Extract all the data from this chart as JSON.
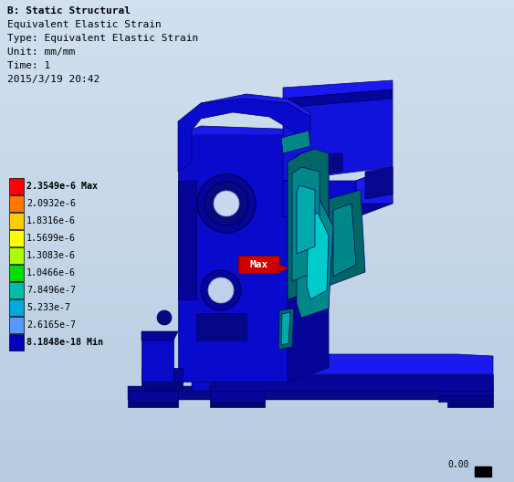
{
  "title_line1": "B: Static Structural",
  "title_line2": "Equivalent Elastic Strain",
  "title_line3": "Type: Equivalent Elastic Strain",
  "title_line4": "Unit: mm/mm",
  "title_line5": "Time: 1",
  "title_line6": "2015/3/19 20:42",
  "legend_values": [
    "2.3549e-6 Max",
    "2.0932e-6",
    "1.8316e-6",
    "1.5699e-6",
    "1.3083e-6",
    "1.0466e-6",
    "7.8496e-7",
    "5.233e-7",
    "2.6165e-7",
    "8.1848e-18 Min"
  ],
  "legend_colors": [
    "#ff0000",
    "#ff7700",
    "#ffcc00",
    "#ffff00",
    "#aaff00",
    "#00dd00",
    "#00bbaa",
    "#00aadd",
    "#5599ff",
    "#0000bb"
  ],
  "bg_color": "#b8cce0",
  "scale_label": "0.00",
  "max_label_text": "Max"
}
